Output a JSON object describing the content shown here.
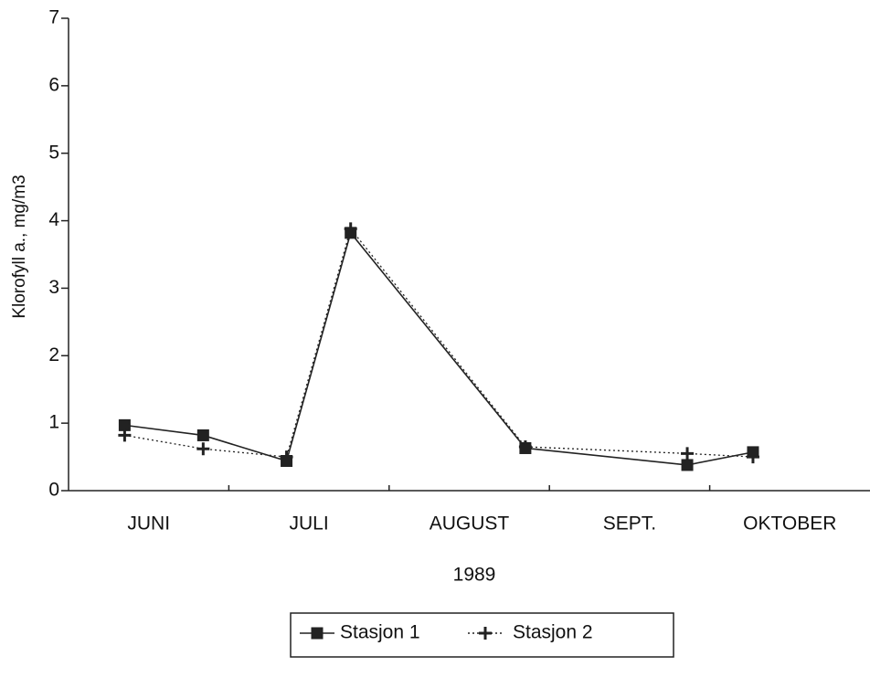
{
  "chart_data": {
    "type": "line",
    "y_label": "Klorofyll a.,   mg/m3",
    "x_label": "1989",
    "categories": [
      "JUNI",
      "JULI",
      "AUGUST",
      "SEPT.",
      "OKTOBER"
    ],
    "x": [
      0.35,
      0.84,
      1.36,
      1.76,
      2.85,
      3.86,
      4.27
    ],
    "xlim": [
      0,
      5
    ],
    "series": [
      {
        "name": "Stasjon 1",
        "color": "#222222",
        "style": "solid",
        "marker": "square",
        "values": [
          0.97,
          0.82,
          0.44,
          3.82,
          0.63,
          0.38,
          0.57
        ]
      },
      {
        "name": "Stasjon 2",
        "color": "#222222",
        "style": "dotted",
        "marker": "plus",
        "values": [
          0.82,
          0.62,
          0.5,
          3.88,
          0.65,
          0.55,
          0.5
        ]
      }
    ],
    "ylim": [
      0,
      7
    ],
    "yticks": [
      0,
      1,
      2,
      3,
      4,
      5,
      6,
      7
    ],
    "grid": false,
    "legend": "bottom"
  }
}
